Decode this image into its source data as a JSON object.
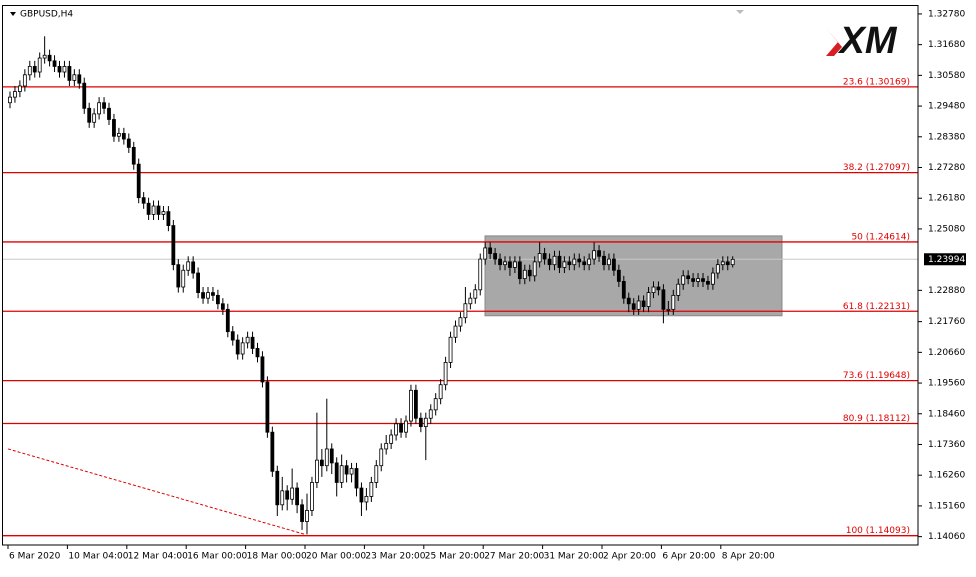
{
  "chart_data": {
    "type": "candlestick",
    "title": "GBPUSD,H4",
    "logo": "XM",
    "ylim": [
      1.1376,
      1.331
    ],
    "yticks": [
      {
        "value": 1.3278,
        "label": "1.32780"
      },
      {
        "value": 1.3168,
        "label": "1.31680"
      },
      {
        "value": 1.3058,
        "label": "1.30580"
      },
      {
        "value": 1.2948,
        "label": "1.29480"
      },
      {
        "value": 1.2838,
        "label": "1.28380"
      },
      {
        "value": 1.2728,
        "label": "1.27280"
      },
      {
        "value": 1.2618,
        "label": "1.26180"
      },
      {
        "value": 1.2508,
        "label": "1.25080"
      },
      {
        "value": 1.2288,
        "label": "1.22880"
      },
      {
        "value": 1.2176,
        "label": "1.21760"
      },
      {
        "value": 1.2066,
        "label": "1.20660"
      },
      {
        "value": 1.1956,
        "label": "1.19560"
      },
      {
        "value": 1.1846,
        "label": "1.18460"
      },
      {
        "value": 1.1736,
        "label": "1.17360"
      },
      {
        "value": 1.1626,
        "label": "1.16260"
      },
      {
        "value": 1.1516,
        "label": "1.15160"
      },
      {
        "value": 1.1406,
        "label": "1.14060"
      }
    ],
    "grid": false,
    "current_price": 1.23994,
    "up_color": "#ffffff",
    "down_color": "#000000",
    "level_color": "#e00000",
    "levels": [
      {
        "value": 1.30169,
        "label": "23.6 (1.30169)"
      },
      {
        "value": 1.27097,
        "label": "38.2 (1.27097)"
      },
      {
        "value": 1.24614,
        "label": "50 (1.24614)"
      },
      {
        "value": 1.22131,
        "label": "61.8 (1.22131)"
      },
      {
        "value": 1.19648,
        "label": "73.6 (1.19648)"
      },
      {
        "value": 1.18112,
        "label": "80.9 (1.18112)"
      },
      {
        "value": 1.14093,
        "label": "100 (1.14093)"
      }
    ],
    "range_box": {
      "top": 1.2483,
      "bottom": 1.2197,
      "color": "#a8a8a8"
    },
    "trendline": {
      "start": 1.172,
      "end": 1.1414
    },
    "categories": [
      "6 Mar 2020",
      null,
      null,
      null,
      null,
      null,
      null,
      null,
      null,
      null,
      null,
      null,
      "10 Mar 04:00",
      null,
      null,
      null,
      null,
      null,
      null,
      null,
      null,
      null,
      null,
      null,
      "12 Mar 04:00",
      null,
      null,
      null,
      null,
      null,
      null,
      null,
      null,
      null,
      null,
      null,
      "16 Mar 00:00",
      null,
      null,
      null,
      null,
      null,
      null,
      null,
      null,
      null,
      null,
      null,
      "18 Mar 00:00",
      null,
      null,
      null,
      null,
      null,
      null,
      null,
      null,
      null,
      null,
      null,
      "20 Mar 00:00",
      null,
      null,
      null,
      null,
      null,
      null,
      null,
      null,
      null,
      null,
      null,
      "23 Mar 20:00",
      null,
      null,
      null,
      null,
      null,
      null,
      null,
      null,
      null,
      null,
      null,
      "25 Mar 20:00",
      null,
      null,
      null,
      null,
      null,
      null,
      null,
      null,
      null,
      null,
      null,
      "27 Mar 20:00",
      null,
      null,
      null,
      null,
      null,
      null,
      null,
      null,
      null,
      null,
      null,
      "31 Mar 20:00",
      null,
      null,
      null,
      null,
      null,
      null,
      null,
      null,
      null,
      null,
      null,
      "2 Apr 20:00",
      null,
      null,
      null,
      null,
      null,
      null,
      null,
      null,
      null,
      null,
      null,
      "6 Apr 20:00",
      null,
      null,
      null,
      null,
      null,
      null,
      null,
      null,
      null,
      null,
      null,
      "8 Apr 20:00",
      null,
      null
    ],
    "open": [
      1.296,
      1.298,
      1.3,
      1.302,
      1.306,
      1.309,
      1.307,
      1.312,
      1.313,
      1.311,
      1.309,
      1.307,
      1.309,
      1.304,
      1.306,
      1.303,
      1.294,
      1.289,
      1.292,
      1.296,
      1.294,
      1.29,
      1.284,
      1.285,
      1.283,
      1.28,
      1.274,
      1.262,
      1.26,
      1.256,
      1.259,
      1.256,
      1.257,
      1.252,
      1.238,
      1.23,
      1.236,
      1.239,
      1.235,
      1.228,
      1.226,
      1.228,
      1.227,
      1.224,
      1.222,
      1.214,
      1.211,
      1.206,
      1.21,
      1.212,
      1.208,
      1.205,
      1.196,
      1.178,
      1.164,
      1.152,
      1.157,
      1.154,
      1.158,
      1.152,
      1.146,
      1.15,
      1.16,
      1.168,
      1.166,
      1.172,
      1.167,
      1.16,
      1.166,
      1.163,
      1.165,
      1.158,
      1.153,
      1.155,
      1.16,
      1.166,
      1.172,
      1.174,
      1.177,
      1.181,
      1.178,
      1.182,
      1.193,
      1.183,
      1.18,
      1.183,
      1.186,
      1.19,
      1.195,
      1.203,
      1.212,
      1.216,
      1.219,
      1.224,
      1.226,
      1.229,
      1.24,
      1.244,
      1.242,
      1.24,
      1.238,
      1.239,
      1.237,
      1.239,
      1.233,
      1.236,
      1.234,
      1.239,
      1.242,
      1.24,
      1.238,
      1.241,
      1.237,
      1.239,
      1.238,
      1.24,
      1.239,
      1.238,
      1.24,
      1.243,
      1.241,
      1.238,
      1.24,
      1.236,
      1.232,
      1.226,
      1.224,
      1.222,
      1.225,
      1.223,
      1.228,
      1.23,
      1.229,
      1.222,
      1.222,
      1.227,
      1.231,
      1.234,
      1.233,
      1.232,
      1.233,
      1.232,
      1.231,
      1.235,
      1.238,
      1.239,
      1.238
    ],
    "high": [
      1.3,
      1.302,
      1.304,
      1.308,
      1.311,
      1.311,
      1.314,
      1.3198,
      1.315,
      1.313,
      1.311,
      1.311,
      1.311,
      1.308,
      1.308,
      1.305,
      1.296,
      1.294,
      1.298,
      1.298,
      1.296,
      1.292,
      1.287,
      1.287,
      1.285,
      1.282,
      1.276,
      1.264,
      1.262,
      1.261,
      1.261,
      1.259,
      1.259,
      1.254,
      1.24,
      1.238,
      1.241,
      1.241,
      1.237,
      1.23,
      1.23,
      1.23,
      1.229,
      1.226,
      1.224,
      1.216,
      1.213,
      1.212,
      1.214,
      1.214,
      1.21,
      1.207,
      1.198,
      1.18,
      1.166,
      1.162,
      1.159,
      1.165,
      1.16,
      1.154,
      1.156,
      1.162,
      1.185,
      1.172,
      1.19,
      1.174,
      1.169,
      1.17,
      1.168,
      1.167,
      1.167,
      1.16,
      1.158,
      1.162,
      1.168,
      1.174,
      1.177,
      1.179,
      1.183,
      1.183,
      1.184,
      1.195,
      1.195,
      1.185,
      1.185,
      1.188,
      1.192,
      1.197,
      1.205,
      1.214,
      1.218,
      1.221,
      1.23,
      1.228,
      1.231,
      1.242,
      1.246,
      1.246,
      1.244,
      1.242,
      1.241,
      1.241,
      1.241,
      1.241,
      1.238,
      1.238,
      1.241,
      1.246,
      1.244,
      1.242,
      1.243,
      1.243,
      1.241,
      1.241,
      1.242,
      1.242,
      1.241,
      1.242,
      1.246,
      1.245,
      1.243,
      1.242,
      1.242,
      1.238,
      1.234,
      1.228,
      1.226,
      1.227,
      1.227,
      1.23,
      1.232,
      1.232,
      1.231,
      1.225,
      1.229,
      1.233,
      1.236,
      1.236,
      1.235,
      1.235,
      1.235,
      1.234,
      1.237,
      1.24,
      1.241,
      1.241,
      1.241
    ],
    "low": [
      1.294,
      1.296,
      1.298,
      1.3,
      1.304,
      1.305,
      1.305,
      1.31,
      1.309,
      1.307,
      1.305,
      1.305,
      1.302,
      1.302,
      1.301,
      1.292,
      1.287,
      1.287,
      1.29,
      1.292,
      1.288,
      1.282,
      1.282,
      1.281,
      1.278,
      1.272,
      1.26,
      1.258,
      1.254,
      1.254,
      1.254,
      1.254,
      1.25,
      1.236,
      1.228,
      1.228,
      1.234,
      1.233,
      1.226,
      1.224,
      1.224,
      1.225,
      1.222,
      1.22,
      1.212,
      1.209,
      1.204,
      1.204,
      1.208,
      1.206,
      1.203,
      1.194,
      1.176,
      1.162,
      1.148,
      1.15,
      1.15,
      1.152,
      1.149,
      1.143,
      1.1414,
      1.148,
      1.158,
      1.162,
      1.164,
      1.163,
      1.155,
      1.158,
      1.16,
      1.16,
      1.155,
      1.148,
      1.15,
      1.153,
      1.158,
      1.164,
      1.17,
      1.172,
      1.175,
      1.176,
      1.176,
      1.18,
      1.181,
      1.178,
      1.168,
      1.181,
      1.184,
      1.188,
      1.193,
      1.201,
      1.21,
      1.214,
      1.217,
      1.222,
      1.224,
      1.227,
      1.238,
      1.24,
      1.238,
      1.236,
      1.236,
      1.234,
      1.235,
      1.231,
      1.231,
      1.232,
      1.232,
      1.237,
      1.238,
      1.236,
      1.236,
      1.235,
      1.235,
      1.236,
      1.236,
      1.237,
      1.236,
      1.236,
      1.238,
      1.239,
      1.236,
      1.236,
      1.234,
      1.23,
      1.224,
      1.221,
      1.22,
      1.22,
      1.221,
      1.221,
      1.226,
      1.227,
      1.217,
      1.22,
      1.22,
      1.225,
      1.229,
      1.231,
      1.23,
      1.23,
      1.23,
      1.229,
      1.229,
      1.233,
      1.236,
      1.236,
      1.237
    ],
    "close": [
      1.298,
      1.3,
      1.302,
      1.306,
      1.309,
      1.307,
      1.312,
      1.313,
      1.311,
      1.309,
      1.307,
      1.309,
      1.304,
      1.306,
      1.303,
      1.294,
      1.289,
      1.292,
      1.296,
      1.294,
      1.29,
      1.284,
      1.285,
      1.283,
      1.28,
      1.274,
      1.262,
      1.26,
      1.256,
      1.259,
      1.256,
      1.257,
      1.252,
      1.238,
      1.23,
      1.236,
      1.239,
      1.235,
      1.228,
      1.226,
      1.228,
      1.227,
      1.224,
      1.222,
      1.214,
      1.211,
      1.206,
      1.21,
      1.212,
      1.208,
      1.205,
      1.196,
      1.178,
      1.164,
      1.152,
      1.157,
      1.154,
      1.158,
      1.152,
      1.146,
      1.15,
      1.16,
      1.168,
      1.166,
      1.172,
      1.167,
      1.16,
      1.166,
      1.163,
      1.165,
      1.158,
      1.153,
      1.155,
      1.16,
      1.166,
      1.172,
      1.174,
      1.177,
      1.181,
      1.178,
      1.182,
      1.193,
      1.183,
      1.18,
      1.183,
      1.186,
      1.19,
      1.195,
      1.203,
      1.212,
      1.216,
      1.219,
      1.224,
      1.226,
      1.229,
      1.24,
      1.244,
      1.242,
      1.24,
      1.238,
      1.239,
      1.237,
      1.239,
      1.233,
      1.236,
      1.234,
      1.239,
      1.242,
      1.24,
      1.238,
      1.241,
      1.237,
      1.239,
      1.238,
      1.24,
      1.239,
      1.238,
      1.24,
      1.243,
      1.241,
      1.238,
      1.24,
      1.236,
      1.232,
      1.226,
      1.224,
      1.222,
      1.225,
      1.223,
      1.228,
      1.23,
      1.229,
      1.222,
      1.222,
      1.227,
      1.231,
      1.234,
      1.233,
      1.232,
      1.233,
      1.232,
      1.231,
      1.235,
      1.238,
      1.239,
      1.238,
      1.2399
    ]
  }
}
